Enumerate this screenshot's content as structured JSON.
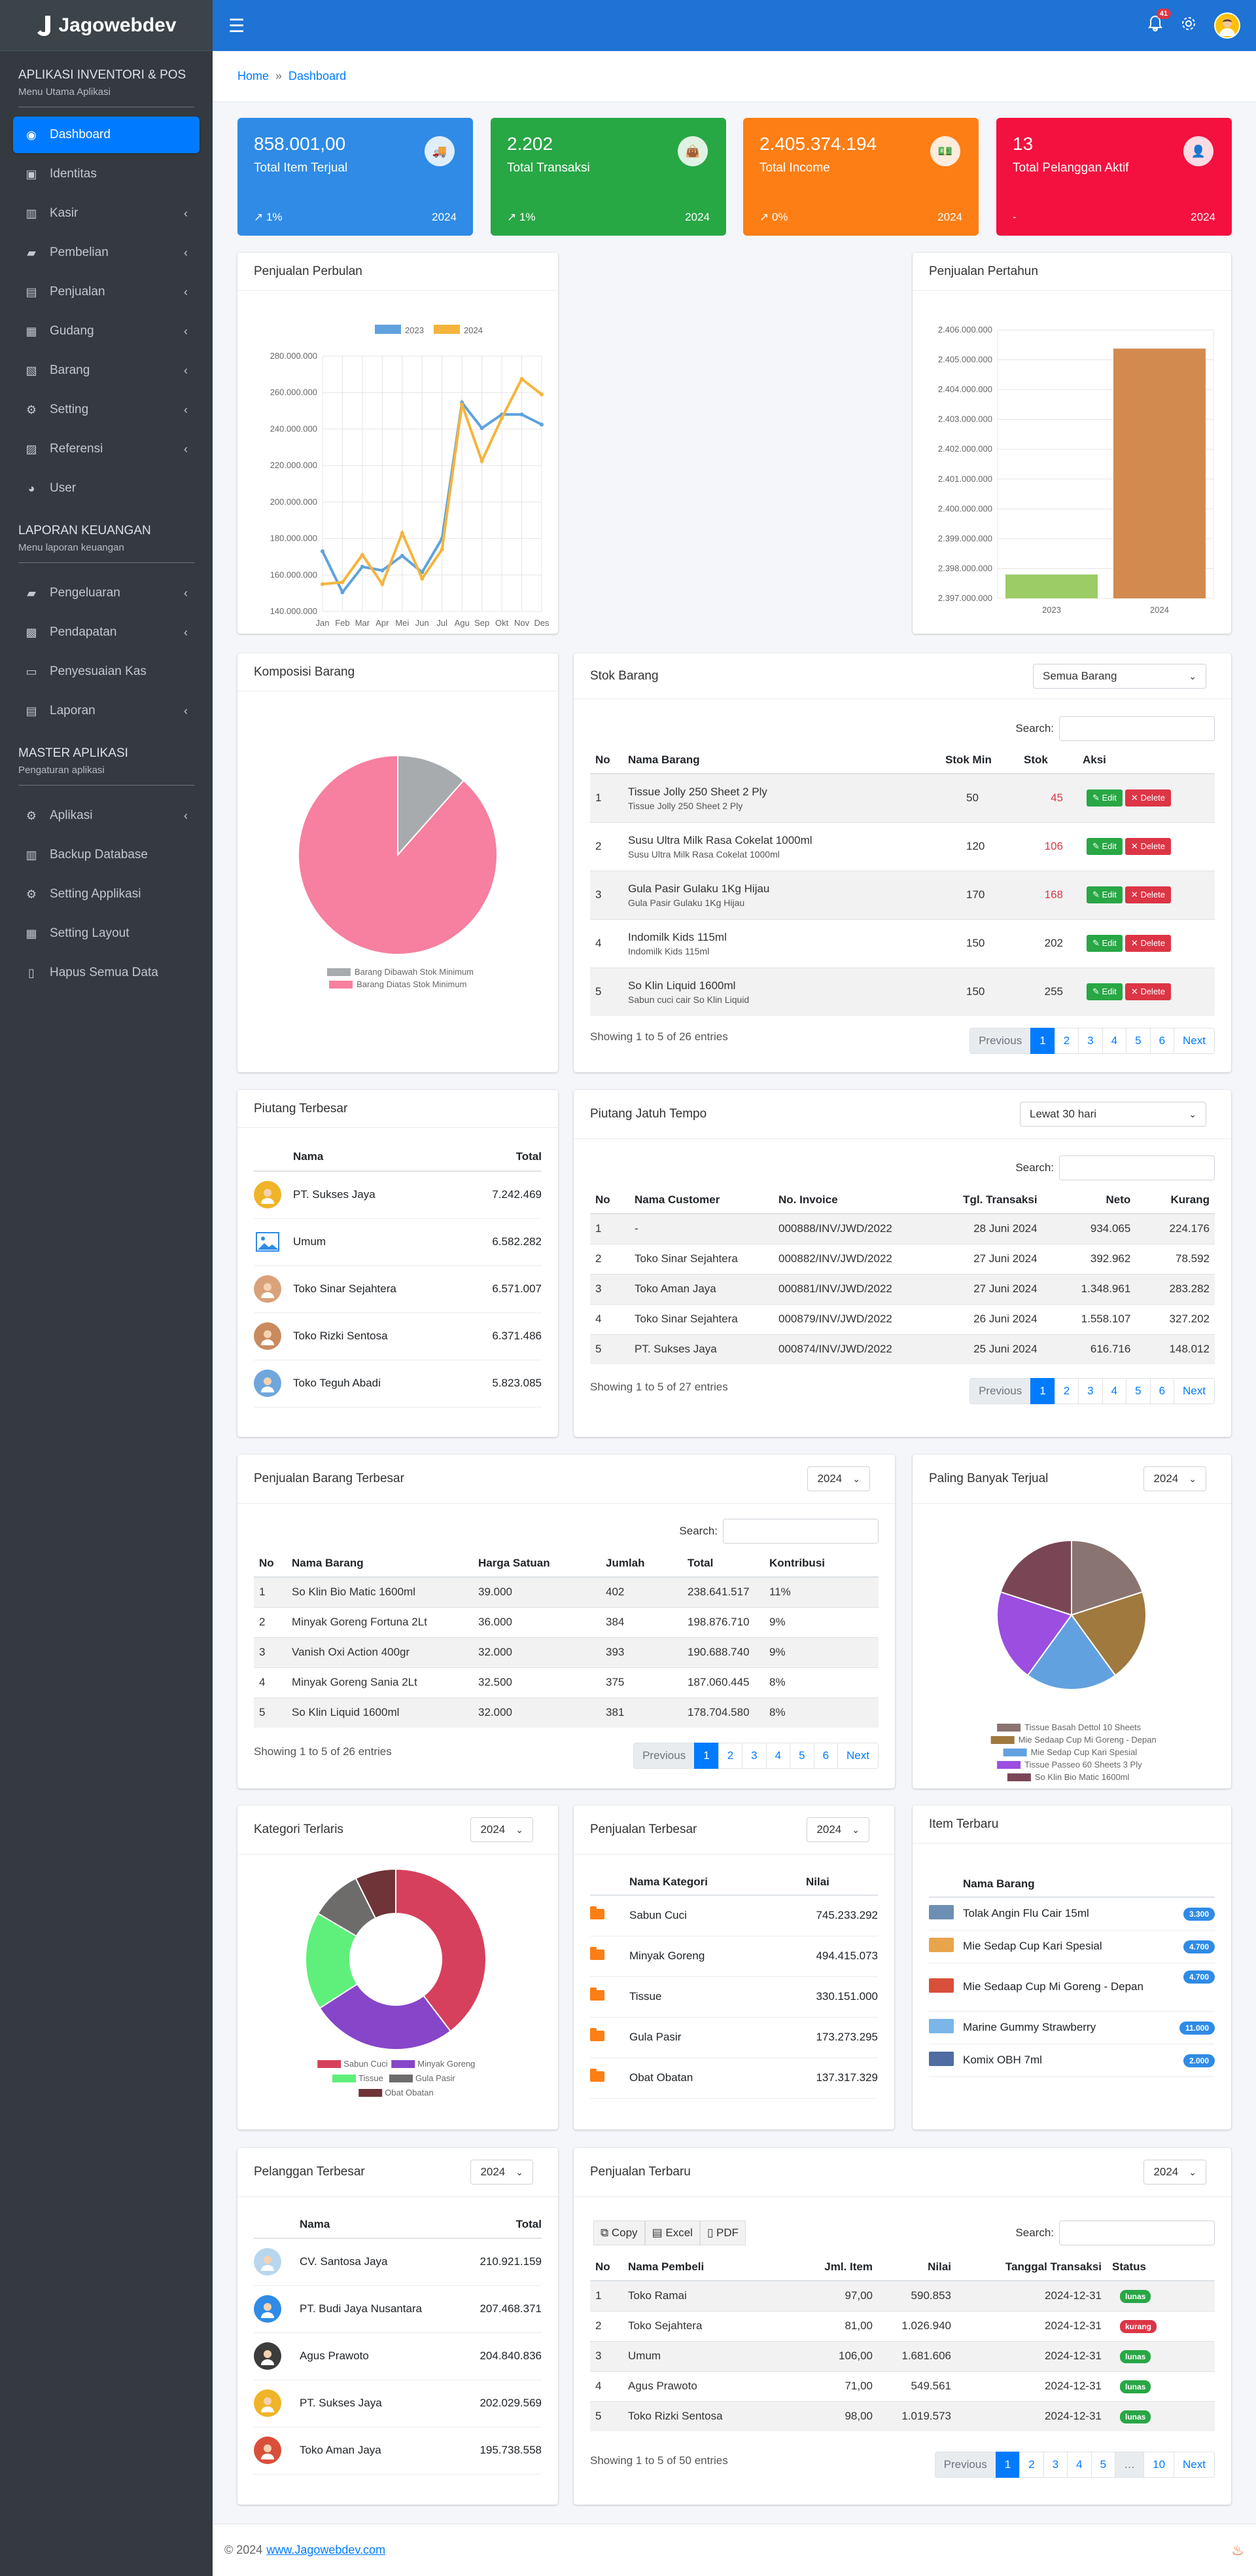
{
  "app": {
    "brand": "Jagowebdev"
  },
  "sidebar": {
    "sections": [
      {
        "title": "APLIKASI INVENTORI & POS",
        "subtitle": "Menu Utama Aplikasi"
      },
      {
        "title": "LAPORAN KEUANGAN",
        "subtitle": "Menu laporan keuangan"
      },
      {
        "title": "MASTER APLIKASI",
        "subtitle": "Pengaturan aplikasi"
      }
    ],
    "items": [
      {
        "label": "Dashboard"
      },
      {
        "label": "Identitas"
      },
      {
        "label": "Kasir"
      },
      {
        "label": "Pembelian"
      },
      {
        "label": "Penjualan"
      },
      {
        "label": "Gudang"
      },
      {
        "label": "Barang"
      },
      {
        "label": "Setting"
      },
      {
        "label": "Referensi"
      },
      {
        "label": "User"
      },
      {
        "label": "Pengeluaran"
      },
      {
        "label": "Pendapatan"
      },
      {
        "label": "Penyesuaian Kas"
      },
      {
        "label": "Laporan"
      },
      {
        "label": "Aplikasi"
      },
      {
        "label": "Backup Database"
      },
      {
        "label": "Setting Applikasi"
      },
      {
        "label": "Setting Layout"
      },
      {
        "label": "Hapus Semua Data"
      }
    ]
  },
  "topbar": {
    "notif_count": "41"
  },
  "breadcrumb": {
    "home": "Home",
    "sep": "»",
    "current": "Dashboard"
  },
  "stats": [
    {
      "value": "858.001,00",
      "label": "Total Item Terjual",
      "trend": "1%",
      "year": "2024",
      "color": "#2f8be6"
    },
    {
      "value": "2.202",
      "label": "Total Transaksi",
      "trend": "1%",
      "year": "2024",
      "color": "#28a745"
    },
    {
      "value": "2.405.374.194",
      "label": "Total Income",
      "trend": "0%",
      "year": "2024",
      "color": "#fd7e14"
    },
    {
      "value": "13",
      "label": "Total Pelanggan Aktif",
      "trend": "-",
      "year": "2024",
      "color": "#f4103f"
    }
  ],
  "penjualan_perbulan": {
    "title": "Penjualan Perbulan"
  },
  "penjualan_pertahun": {
    "title": "Penjualan Pertahun"
  },
  "komposisi": {
    "title": "Komposisi Barang"
  },
  "stok": {
    "title": "Stok Barang",
    "filter": "Semua Barang",
    "search_label": "Search:",
    "headers": [
      "No",
      "Nama Barang",
      "Stok Min",
      "Stok",
      "Aksi"
    ],
    "rows": [
      {
        "no": "1",
        "nama": "Tissue Jolly 250 Sheet 2 Ply",
        "sub": "Tissue Jolly 250 Sheet 2 Ply",
        "min": "50",
        "stok": "45",
        "red": true
      },
      {
        "no": "2",
        "nama": "Susu Ultra Milk Rasa Cokelat 1000ml",
        "sub": "Susu Ultra Milk Rasa Cokelat 1000ml",
        "min": "120",
        "stok": "106",
        "red": true
      },
      {
        "no": "3",
        "nama": "Gula Pasir Gulaku 1Kg Hijau",
        "sub": "Gula Pasir Gulaku 1Kg Hijau",
        "min": "170",
        "stok": "168",
        "red": true
      },
      {
        "no": "4",
        "nama": "Indomilk Kids 115ml",
        "sub": "Indomilk Kids 115ml",
        "min": "150",
        "stok": "202",
        "red": false
      },
      {
        "no": "5",
        "nama": "So Klin Liquid 1600ml",
        "sub": "Sabun cuci cair So Klin Liquid",
        "min": "150",
        "stok": "255",
        "red": false
      }
    ],
    "edit": "Edit",
    "delete": "Delete",
    "info": "Showing 1 to 5 of 26 entries",
    "pager": [
      "Previous",
      "1",
      "2",
      "3",
      "4",
      "5",
      "6",
      "Next"
    ]
  },
  "piutang_terbesar": {
    "title": "Piutang Terbesar",
    "headers": [
      "Nama",
      "Total"
    ],
    "rows": [
      {
        "nama": "PT. Sukses Jaya",
        "total": "7.242.469"
      },
      {
        "nama": "Umum",
        "total": "6.582.282"
      },
      {
        "nama": "Toko Sinar Sejahtera",
        "total": "6.571.007"
      },
      {
        "nama": "Toko Rizki Sentosa",
        "total": "6.371.486"
      },
      {
        "nama": "Toko Teguh Abadi",
        "total": "5.823.085"
      }
    ]
  },
  "jatuh_tempo": {
    "title": "Piutang Jatuh Tempo",
    "filter": "Lewat 30 hari",
    "search_label": "Search:",
    "headers": [
      "No",
      "Nama Customer",
      "No. Invoice",
      "Tgl. Transaksi",
      "Neto",
      "Kurang"
    ],
    "rows": [
      {
        "no": "1",
        "nama": "-",
        "inv": "000888/INV/JWD/2022",
        "tgl": "28 Juni 2024",
        "neto": "934.065",
        "kurang": "224.176"
      },
      {
        "no": "2",
        "nama": "Toko Sinar Sejahtera",
        "inv": "000882/INV/JWD/2022",
        "tgl": "27 Juni 2024",
        "neto": "392.962",
        "kurang": "78.592"
      },
      {
        "no": "3",
        "nama": "Toko Aman Jaya",
        "inv": "000881/INV/JWD/2022",
        "tgl": "27 Juni 2024",
        "neto": "1.348.961",
        "kurang": "283.282"
      },
      {
        "no": "4",
        "nama": "Toko Sinar Sejahtera",
        "inv": "000879/INV/JWD/2022",
        "tgl": "26 Juni 2024",
        "neto": "1.558.107",
        "kurang": "327.202"
      },
      {
        "no": "5",
        "nama": "PT. Sukses Jaya",
        "inv": "000874/INV/JWD/2022",
        "tgl": "25 Juni 2024",
        "neto": "616.716",
        "kurang": "148.012"
      }
    ],
    "info": "Showing 1 to 5 of 27 entries",
    "pager": [
      "Previous",
      "1",
      "2",
      "3",
      "4",
      "5",
      "6",
      "Next"
    ]
  },
  "barang_terbesar": {
    "title": "Penjualan Barang Terbesar",
    "year": "2024",
    "search_label": "Search:",
    "headers": [
      "No",
      "Nama Barang",
      "Harga Satuan",
      "Jumlah",
      "Total",
      "Kontribusi"
    ],
    "rows": [
      {
        "no": "1",
        "nama": "So Klin Bio Matic 1600ml",
        "harga": "39.000",
        "jml": "402",
        "total": "238.641.517",
        "kon": "11%"
      },
      {
        "no": "2",
        "nama": "Minyak Goreng Fortuna 2Lt",
        "harga": "36.000",
        "jml": "384",
        "total": "198.876.710",
        "kon": "9%"
      },
      {
        "no": "3",
        "nama": "Vanish Oxi Action 400gr",
        "harga": "32.000",
        "jml": "393",
        "total": "190.688.740",
        "kon": "9%"
      },
      {
        "no": "4",
        "nama": "Minyak Goreng Sania 2Lt",
        "harga": "32.500",
        "jml": "375",
        "total": "187.060.445",
        "kon": "8%"
      },
      {
        "no": "5",
        "nama": "So Klin Liquid 1600ml",
        "harga": "32.000",
        "jml": "381",
        "total": "178.704.580",
        "kon": "8%"
      }
    ],
    "info": "Showing 1 to 5 of 26 entries",
    "pager": [
      "Previous",
      "1",
      "2",
      "3",
      "4",
      "5",
      "6",
      "Next"
    ]
  },
  "paling_banyak": {
    "title": "Paling Banyak Terjual",
    "year": "2024"
  },
  "kategori": {
    "title": "Kategori Terlaris",
    "year": "2024"
  },
  "penjualan_terbesar": {
    "title": "Penjualan Terbesar",
    "year": "2024",
    "headers": [
      "Nama Kategori",
      "Nilai"
    ],
    "rows": [
      {
        "nama": "Sabun Cuci",
        "nilai": "745.233.292"
      },
      {
        "nama": "Minyak Goreng",
        "nilai": "494.415.073"
      },
      {
        "nama": "Tissue",
        "nilai": "330.151.000"
      },
      {
        "nama": "Gula Pasir",
        "nilai": "173.273.295"
      },
      {
        "nama": "Obat Obatan",
        "nilai": "137.317.329"
      }
    ]
  },
  "item_terbaru": {
    "title": "Item Terbaru",
    "header": "Nama Barang",
    "rows": [
      {
        "nama": "Tolak Angin Flu Cair 15ml",
        "price": "3.300",
        "color": "#2f8be6"
      },
      {
        "nama": "Mie Sedap Cup Kari Spesial",
        "price": "4.700",
        "color": "#2f8be6"
      },
      {
        "nama": "Mie Sedaap Cup Mi Goreng - Depan",
        "price": "4.700",
        "color": "#2f8be6"
      },
      {
        "nama": "Marine Gummy Strawberry",
        "price": "11.000",
        "color": "#2f8be6"
      },
      {
        "nama": "Komix OBH 7ml",
        "price": "2.000",
        "color": "#2f8be6"
      }
    ]
  },
  "pelanggan": {
    "title": "Pelanggan Terbesar",
    "year": "2024",
    "headers": [
      "Nama",
      "Total"
    ],
    "rows": [
      {
        "nama": "CV. Santosa Jaya",
        "total": "210.921.159"
      },
      {
        "nama": "PT. Budi Jaya Nusantara",
        "total": "207.468.371"
      },
      {
        "nama": "Agus Prawoto",
        "total": "204.840.836"
      },
      {
        "nama": "PT. Sukses Jaya",
        "total": "202.029.569"
      },
      {
        "nama": "Toko Aman Jaya",
        "total": "195.738.558"
      }
    ]
  },
  "penjualan_terbaru": {
    "title": "Penjualan Terbaru",
    "year": "2024",
    "search_label": "Search:",
    "buttons": [
      "Copy",
      "Excel",
      "PDF"
    ],
    "headers": [
      "No",
      "Nama Pembeli",
      "Jml. Item",
      "Nilai",
      "Tanggal Transaksi",
      "Status"
    ],
    "rows": [
      {
        "no": "1",
        "nama": "Toko Ramai",
        "item": "97,00",
        "nilai": "590.853",
        "tgl": "2024-12-31",
        "status": "lunas",
        "color": "#28a745"
      },
      {
        "no": "2",
        "nama": "Toko Sejahtera",
        "item": "81,00",
        "nilai": "1.026.940",
        "tgl": "2024-12-31",
        "status": "kurang",
        "color": "#dc3545"
      },
      {
        "no": "3",
        "nama": "Umum",
        "item": "106,00",
        "nilai": "1.681.606",
        "tgl": "2024-12-31",
        "status": "lunas",
        "color": "#28a745"
      },
      {
        "no": "4",
        "nama": "Agus Prawoto",
        "item": "71,00",
        "nilai": "549.561",
        "tgl": "2024-12-31",
        "status": "lunas",
        "color": "#28a745"
      },
      {
        "no": "5",
        "nama": "Toko Rizki Sentosa",
        "item": "98,00",
        "nilai": "1.019.573",
        "tgl": "2024-12-31",
        "status": "lunas",
        "color": "#28a745"
      }
    ],
    "info": "Showing 1 to 5 of 50 entries",
    "pager": [
      "Previous",
      "1",
      "2",
      "3",
      "4",
      "5",
      "…",
      "10",
      "Next"
    ]
  },
  "footer": {
    "text": "© 2024",
    "link": "www.Jagowebdev.com"
  },
  "chart_data": [
    {
      "type": "line",
      "categories": [
        "Jan",
        "Feb",
        "Mar",
        "Apr",
        "Mei",
        "Jun",
        "Jul",
        "Agu",
        "Sep",
        "Okt",
        "Nov",
        "Des"
      ],
      "series": [
        {
          "name": "2023",
          "color": "#5fa2dd",
          "values": [
            173000000,
            150500000,
            164500000,
            162500000,
            170500000,
            161500000,
            180000000,
            254500000,
            240500000,
            248000000,
            248000000,
            242500000
          ]
        },
        {
          "name": "2024",
          "color": "#f5b43c",
          "values": [
            155000000,
            156000000,
            171000000,
            155000000,
            183000000,
            158000000,
            174000000,
            253500000,
            222500000,
            246000000,
            267500000,
            259000000
          ]
        }
      ],
      "ylim": [
        140000000,
        280000000
      ],
      "yticks": [
        "140.000.000",
        "160.000.000",
        "180.000.000",
        "200.000.000",
        "220.000.000",
        "240.000.000",
        "260.000.000",
        "280.000.000"
      ],
      "legend": "top"
    },
    {
      "type": "bar",
      "categories": [
        "2023",
        "2024"
      ],
      "values": [
        2397800000,
        2405374194
      ],
      "colors": [
        "#9ccc65",
        "#d28a4f"
      ],
      "ylim": [
        2397000000,
        2406000000
      ],
      "yticks": [
        "2.397.000.000",
        "2.398.000.000",
        "2.399.000.000",
        "2.400.000.000",
        "2.401.000.000",
        "2.402.000.000",
        "2.403.000.000",
        "2.404.000.000",
        "2.405.000.000",
        "2.406.000.000"
      ]
    },
    {
      "type": "pie",
      "labels": [
        "Barang Dibawah Stok Minimum",
        "Barang Diatas Stok Minimum"
      ],
      "values": [
        3,
        23
      ],
      "colors": [
        "#a8abae",
        "#f77f9f"
      ],
      "legend": "bottom"
    },
    {
      "type": "pie",
      "labels": [
        "Tissue Basah Dettol 10 Sheets",
        "Mie Sedaap Cup Mi Goreng - Depan",
        "Mie Sedap Cup Kari Spesial",
        "Tissue Passeo 60 Sheets 3 Ply",
        "So Klin Bio Matic 1600ml"
      ],
      "values": [
        20,
        20,
        20,
        20,
        20
      ],
      "colors": [
        "#8a7472",
        "#a0793e",
        "#62a1e0",
        "#9b4ee0",
        "#7a4656"
      ],
      "legend": "bottom"
    },
    {
      "type": "pie",
      "labels": [
        "Sabun Cuci",
        "Minyak Goreng",
        "Tissue",
        "Gula Pasir",
        "Obat Obatan"
      ],
      "values": [
        745233292,
        494415073,
        330151000,
        173273295,
        137317329
      ],
      "colors": [
        "#d6405c",
        "#8745c9",
        "#5ef07a",
        "#6e6b6b",
        "#6e3438"
      ],
      "legend": "bottom"
    }
  ]
}
